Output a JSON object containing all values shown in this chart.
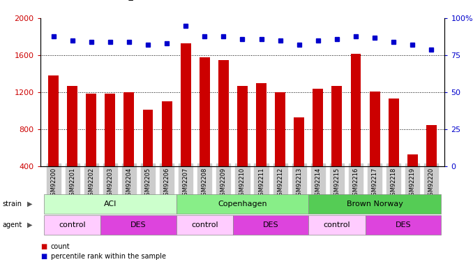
{
  "samples": [
    "GSM92200",
    "GSM92201",
    "GSM92202",
    "GSM92203",
    "GSM92204",
    "GSM92205",
    "GSM92206",
    "GSM92207",
    "GSM92208",
    "GSM92209",
    "GSM92210",
    "GSM92211",
    "GSM92212",
    "GSM92213",
    "GSM92214",
    "GSM92215",
    "GSM92216",
    "GSM92217",
    "GSM92218",
    "GSM92219",
    "GSM92220"
  ],
  "counts": [
    1380,
    1270,
    1190,
    1190,
    1200,
    1010,
    1100,
    1730,
    1580,
    1550,
    1270,
    1300,
    1200,
    930,
    1240,
    1270,
    1620,
    1210,
    1130,
    530,
    850
  ],
  "percentiles": [
    88,
    85,
    84,
    84,
    84,
    82,
    83,
    95,
    88,
    88,
    86,
    86,
    85,
    82,
    85,
    86,
    88,
    87,
    84,
    82,
    79
  ],
  "bar_color": "#cc0000",
  "dot_color": "#0000cc",
  "ylim_left": [
    400,
    2000
  ],
  "ylim_right": [
    0,
    100
  ],
  "yticks_left": [
    400,
    800,
    1200,
    1600,
    2000
  ],
  "yticks_right": [
    0,
    25,
    50,
    75,
    100
  ],
  "ytick_right_labels": [
    "0",
    "25",
    "50",
    "75",
    "100%"
  ],
  "grid_values": [
    800,
    1200,
    1600
  ],
  "strain_groups": [
    {
      "label": "ACI",
      "start": 0,
      "end": 6,
      "color": "#ccffcc"
    },
    {
      "label": "Copenhagen",
      "start": 7,
      "end": 13,
      "color": "#88ee88"
    },
    {
      "label": "Brown Norway",
      "start": 14,
      "end": 20,
      "color": "#55cc55"
    }
  ],
  "agent_groups": [
    {
      "label": "control",
      "start": 0,
      "end": 2,
      "color": "#ffccff"
    },
    {
      "label": "DES",
      "start": 3,
      "end": 6,
      "color": "#dd44dd"
    },
    {
      "label": "control",
      "start": 7,
      "end": 9,
      "color": "#ffccff"
    },
    {
      "label": "DES",
      "start": 10,
      "end": 13,
      "color": "#dd44dd"
    },
    {
      "label": "control",
      "start": 14,
      "end": 16,
      "color": "#ffccff"
    },
    {
      "label": "DES",
      "start": 17,
      "end": 20,
      "color": "#dd44dd"
    }
  ],
  "bg_color": "#ffffff",
  "tick_bg_color": "#cccccc"
}
